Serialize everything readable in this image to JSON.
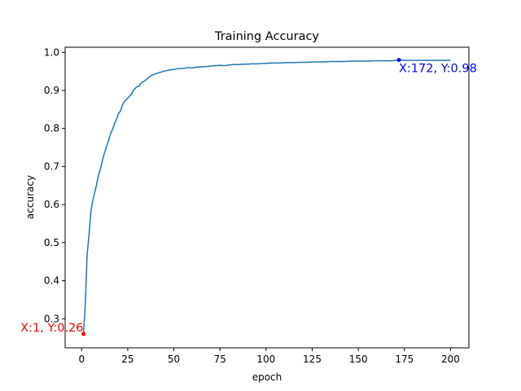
{
  "chart_data": {
    "type": "line",
    "title": "Training Accuracy",
    "xlabel": "epoch",
    "ylabel": "accuracy",
    "xlim": [
      -8.95,
      209.95
    ],
    "ylim": [
      0.2235,
      1.0135
    ],
    "xticks": [
      0,
      25,
      50,
      75,
      100,
      125,
      150,
      175,
      200
    ],
    "yticks": [
      0.3,
      0.4,
      0.5,
      0.6,
      0.7,
      0.8,
      0.9,
      1.0
    ],
    "grid": false,
    "line_color": "#1f77b4",
    "series": [
      {
        "x": [
          1,
          2,
          3,
          4,
          5,
          6,
          7,
          8,
          9,
          10,
          11,
          12,
          13,
          14,
          15,
          16,
          17,
          18,
          19,
          20,
          21,
          22,
          23,
          24,
          25,
          26,
          27,
          28,
          29,
          30,
          31,
          32,
          33,
          34,
          35,
          36,
          37,
          38,
          39,
          40,
          41,
          42,
          43,
          44,
          45,
          46,
          47,
          48,
          49,
          50,
          52,
          55,
          58,
          60,
          62,
          65,
          68,
          70,
          72,
          75,
          78,
          80,
          82,
          85,
          88,
          90,
          92,
          95,
          98,
          100,
          102,
          105,
          108,
          110,
          112,
          115,
          118,
          120,
          122,
          125,
          128,
          130,
          132,
          135,
          138,
          140,
          142,
          145,
          148,
          150,
          152,
          155,
          158,
          160,
          162,
          165,
          168,
          170,
          172,
          175,
          178,
          180,
          182,
          185,
          188,
          190,
          192,
          195,
          198,
          200
        ],
        "y": [
          0.26,
          0.34,
          0.47,
          0.52,
          0.58,
          0.61,
          0.63,
          0.65,
          0.675,
          0.69,
          0.71,
          0.73,
          0.745,
          0.76,
          0.775,
          0.79,
          0.8,
          0.815,
          0.825,
          0.84,
          0.845,
          0.86,
          0.87,
          0.875,
          0.88,
          0.885,
          0.89,
          0.9,
          0.905,
          0.91,
          0.91,
          0.918,
          0.922,
          0.925,
          0.928,
          0.933,
          0.936,
          0.94,
          0.942,
          0.944,
          0.945,
          0.947,
          0.948,
          0.95,
          0.951,
          0.952,
          0.953,
          0.954,
          0.955,
          0.955,
          0.957,
          0.958,
          0.96,
          0.959,
          0.961,
          0.962,
          0.963,
          0.964,
          0.965,
          0.966,
          0.965,
          0.967,
          0.968,
          0.968,
          0.969,
          0.969,
          0.97,
          0.97,
          0.971,
          0.971,
          0.972,
          0.972,
          0.972,
          0.973,
          0.973,
          0.973,
          0.974,
          0.974,
          0.974,
          0.975,
          0.975,
          0.975,
          0.975,
          0.976,
          0.976,
          0.976,
          0.976,
          0.977,
          0.977,
          0.977,
          0.977,
          0.977,
          0.978,
          0.978,
          0.978,
          0.978,
          0.978,
          0.979,
          0.98,
          0.979,
          0.979,
          0.979,
          0.979,
          0.979,
          0.979,
          0.979,
          0.979,
          0.979,
          0.979,
          0.979
        ]
      }
    ],
    "annotations": [
      {
        "text": "X:1, Y:0.26",
        "x": 1,
        "y": 0.26,
        "color": "#ff0000"
      },
      {
        "text": "X:172, Y:0.98",
        "x": 172,
        "y": 0.98,
        "color": "#0000ff"
      }
    ]
  }
}
